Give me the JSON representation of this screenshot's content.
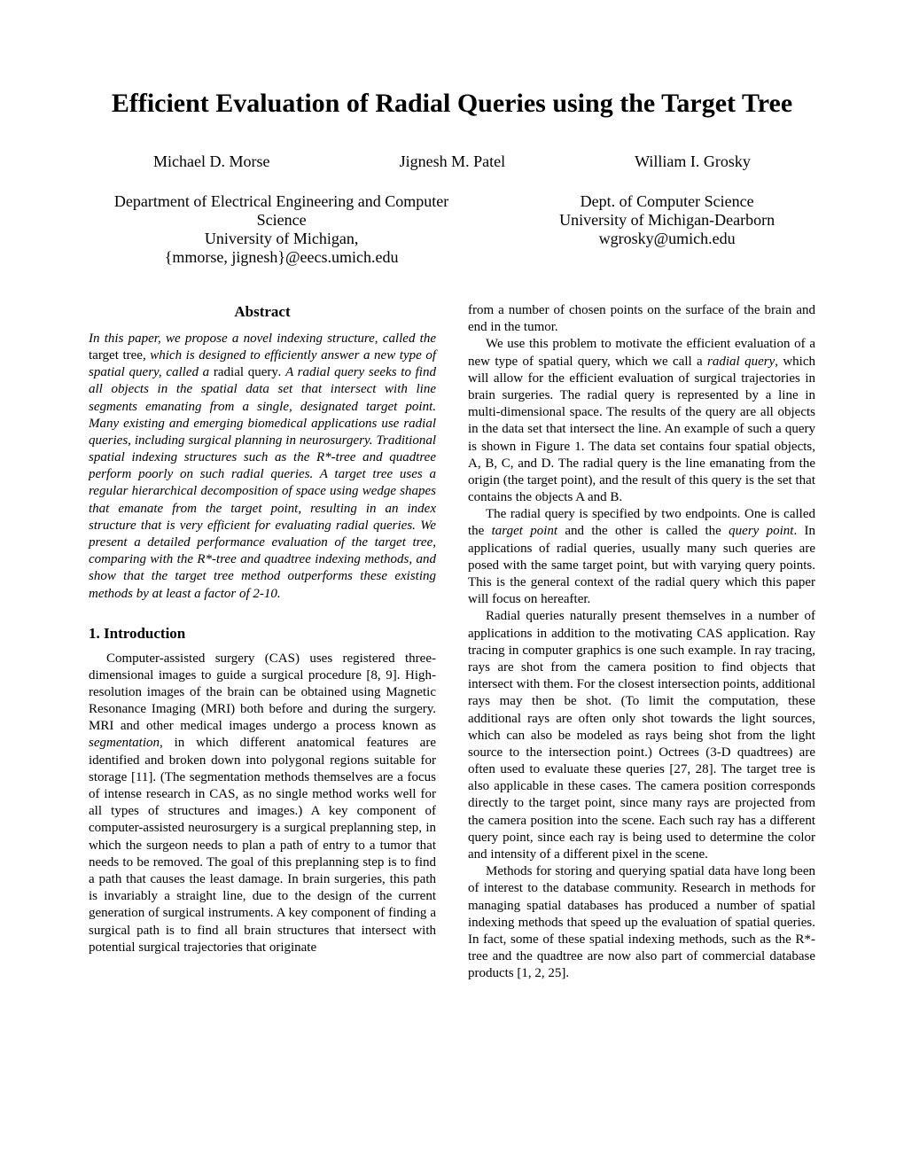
{
  "title": "Efficient Evaluation of Radial Queries using the Target Tree",
  "authors": [
    "Michael D. Morse",
    "Jignesh M. Patel",
    "William I. Grosky"
  ],
  "aff_left": {
    "line1": "Department of Electrical Engineering and Computer Science",
    "line2": "University of Michigan,",
    "line3": "{mmorse, jignesh}@eecs.umich.edu"
  },
  "aff_right": {
    "line1": "Dept. of Computer Science",
    "line2": "University of Michigan-Dearborn",
    "line3": "wgrosky@umich.edu"
  },
  "abstract_heading": "Abstract",
  "abstract_s1": "In this paper, we propose a novel indexing structure, called the ",
  "abstract_up1": "target tree",
  "abstract_s2": ", which is designed to efficiently answer a new type of spatial query, called a ",
  "abstract_up2": "radial query",
  "abstract_s3": ". A radial query seeks to find all objects in the spatial data set that intersect with line segments emanating from a single, designated target point. Many existing and emerging biomedical applications use radial queries, including surgical planning in neurosurgery. Traditional spatial indexing structures such as the R*-tree and quadtree perform poorly on such radial queries. A target tree uses a regular hierarchical decomposition of space using wedge shapes that emanate from the target point, resulting in an index structure that is very efficient for evaluating radial queries. We present a detailed performance evaluation of the target tree, comparing with the R*-tree and quadtree indexing methods, and show that the target tree method outperforms these existing methods by at least a factor of 2-10.",
  "intro_heading": "1.   Introduction",
  "intro_p1a": "Computer-assisted surgery (CAS) uses registered three-dimensional images to guide a surgical procedure [8, 9]. High-resolution images of the brain can be obtained using Magnetic Resonance Imaging (MRI) both before and during the surgery. MRI and other medical images undergo a process known as ",
  "intro_p1_em": "segmentation",
  "intro_p1b": ", in which different anatomical features are identified and broken down into polygonal regions suitable for storage [11]. (The segmentation methods themselves are a focus of intense research in CAS, as no single method works well for all types of structures and images.) A key component of computer-assisted neurosurgery is a surgical preplanning step, in which the surgeon needs to plan a path of entry to a tumor that needs to be removed. The goal of this preplanning step is to find a path that causes the least damage. In brain surgeries, this path is invariably a straight line, due to the design of the current generation of surgical instruments. A key component of finding a surgical path is to find all brain structures that intersect with potential surgical trajectories that originate",
  "rc_p0": "from a number of chosen points on the surface of the brain and end in the tumor.",
  "rc_p1a": "We use this problem to motivate the efficient evaluation of a new type of spatial query, which we call a ",
  "rc_p1_em": "radial query",
  "rc_p1b": ", which will allow for the efficient evaluation of surgical trajectories in brain surgeries. The radial query is represented by a line in multi-dimensional space. The results of the query are all objects in the data set that intersect the line. An example of such a query is shown in Figure 1. The data set contains four spatial objects, A, B, C, and D. The radial query is the line emanating from the origin (the target point), and the result of this query is the set that contains the objects A and B.",
  "rc_p2a": "The radial query is specified by two endpoints. One is called the ",
  "rc_p2_em1": "target point",
  "rc_p2b": " and the other is called the ",
  "rc_p2_em2": "query point",
  "rc_p2c": ". In applications of radial queries, usually many such queries are posed with the same target point, but with varying query points. This is the general context of the radial query which this paper will focus on hereafter.",
  "rc_p3": "Radial queries naturally present themselves in a number of applications in addition to the motivating CAS application. Ray tracing in computer graphics is one such example. In ray tracing, rays are shot from the camera position to find objects that intersect with them. For the closest intersection points, additional rays may then be shot. (To limit the computation, these additional rays are often only shot towards the light sources, which can also be modeled as rays being shot from the light source to the intersection point.) Octrees (3-D quadtrees) are often used to evaluate these queries [27, 28]. The target tree is also applicable in these cases. The camera position corresponds directly to the target point, since many rays are projected from the camera position into the scene. Each such ray has a different query point, since each ray is being used to determine the color and intensity of a different pixel in the scene.",
  "rc_p4": "Methods for storing and querying spatial data have long been of interest to the database community. Research in methods for managing spatial databases has produced a number of spatial indexing methods that speed up the evaluation of spatial queries. In fact, some of these spatial indexing methods, such as the R*-tree and the quadtree are now also part of commercial database products [1, 2, 25]."
}
